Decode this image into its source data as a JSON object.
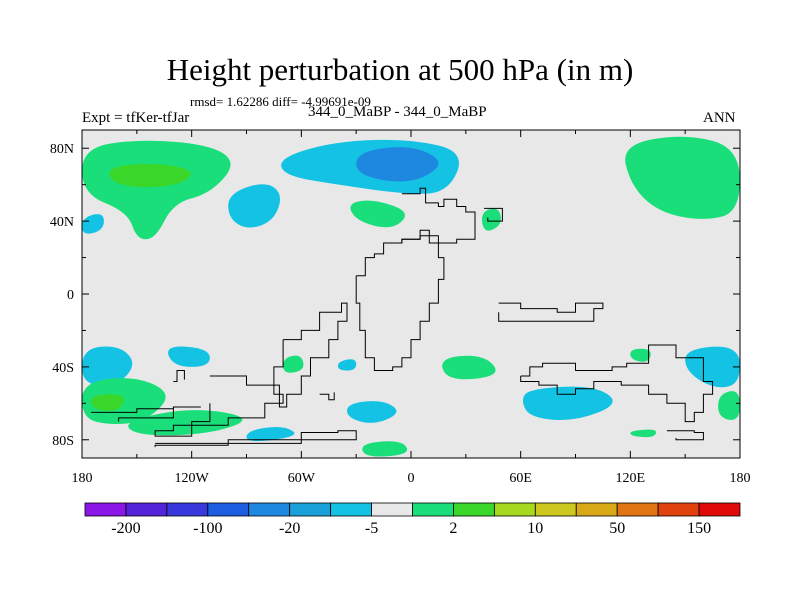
{
  "chart_data": {
    "type": "heatmap",
    "title": "Height perturbation at 500 hPa (in m)",
    "stats_line": "rmsd= 1.62286 diff= -4.99691e-09",
    "left_label": "Expt = tfKer-tfJar",
    "center_label": "344_0_MaBP - 344_0_MaBP",
    "right_label": "ANN",
    "xlim": [
      -180,
      180
    ],
    "ylim": [
      -90,
      90
    ],
    "x_ticks": [
      {
        "value": -180,
        "label": "180"
      },
      {
        "value": -120,
        "label": "120W"
      },
      {
        "value": -60,
        "label": "60W"
      },
      {
        "value": 0,
        "label": "0"
      },
      {
        "value": 60,
        "label": "60E"
      },
      {
        "value": 120,
        "label": "120E"
      },
      {
        "value": 180,
        "label": "180"
      }
    ],
    "y_ticks": [
      {
        "value": 80,
        "label": "80N"
      },
      {
        "value": 40,
        "label": "40N"
      },
      {
        "value": 0,
        "label": "0"
      },
      {
        "value": -40,
        "label": "40S"
      },
      {
        "value": -80,
        "label": "80S"
      }
    ],
    "colorbar": {
      "colors": [
        "#8b17e6",
        "#5323d8",
        "#3838dc",
        "#1d5ee0",
        "#1e88e0",
        "#1aa0d8",
        "#14c3e3",
        "#e8e8e8",
        "#1ade7a",
        "#3ad62a",
        "#a5d81e",
        "#ccc81d",
        "#d8a816",
        "#e07412",
        "#e0420e",
        "#e00a0a"
      ],
      "labels": [
        {
          "boundary": 1,
          "text": "-200"
        },
        {
          "boundary": 3,
          "text": "-100"
        },
        {
          "boundary": 5,
          "text": "-20"
        },
        {
          "boundary": 7,
          "text": "-5"
        },
        {
          "boundary": 9,
          "text": "2"
        },
        {
          "boundary": 11,
          "text": "10"
        },
        {
          "boundary": 13,
          "text": "50"
        },
        {
          "boundary": 15,
          "text": "150"
        }
      ]
    },
    "background_color": "#e8e8e8",
    "anomaly_regions": [
      {
        "level": "positive-weak",
        "color": "#1ade7a",
        "points": [
          [
            -180,
            80
          ],
          [
            -150,
            85
          ],
          [
            -110,
            82
          ],
          [
            -95,
            72
          ],
          [
            -110,
            55
          ],
          [
            -130,
            50
          ],
          [
            -140,
            30
          ],
          [
            -150,
            30
          ],
          [
            -155,
            45
          ],
          [
            -180,
            55
          ]
        ]
      },
      {
        "level": "positive-moderate",
        "color": "#3ad62a",
        "points": [
          [
            -165,
            70
          ],
          [
            -140,
            72
          ],
          [
            -118,
            68
          ],
          [
            -125,
            60
          ],
          [
            -150,
            58
          ],
          [
            -165,
            62
          ]
        ]
      },
      {
        "level": "negative-weak",
        "color": "#14c3e3",
        "points": [
          [
            -180,
            42
          ],
          [
            -168,
            45
          ],
          [
            -168,
            35
          ],
          [
            -180,
            32
          ]
        ]
      },
      {
        "level": "negative-weak",
        "color": "#14c3e3",
        "points": [
          [
            -100,
            55
          ],
          [
            -80,
            62
          ],
          [
            -70,
            55
          ],
          [
            -75,
            40
          ],
          [
            -90,
            35
          ],
          [
            -100,
            42
          ]
        ]
      },
      {
        "level": "negative-weak",
        "color": "#14c3e3",
        "points": [
          [
            -72,
            75
          ],
          [
            -40,
            84
          ],
          [
            0,
            85
          ],
          [
            30,
            78
          ],
          [
            20,
            55
          ],
          [
            -5,
            55
          ],
          [
            -40,
            60
          ],
          [
            -70,
            65
          ]
        ]
      },
      {
        "level": "negative-moderate",
        "color": "#1e88e0",
        "points": [
          [
            -30,
            78
          ],
          [
            0,
            82
          ],
          [
            20,
            72
          ],
          [
            0,
            60
          ],
          [
            -30,
            65
          ]
        ]
      },
      {
        "level": "positive-weak",
        "color": "#1ade7a",
        "points": [
          [
            -35,
            50
          ],
          [
            -20,
            52
          ],
          [
            0,
            45
          ],
          [
            -10,
            35
          ],
          [
            -30,
            40
          ]
        ]
      },
      {
        "level": "positive-weak",
        "color": "#1ade7a",
        "points": [
          [
            38,
            45
          ],
          [
            48,
            48
          ],
          [
            50,
            38
          ],
          [
            40,
            33
          ]
        ]
      },
      {
        "level": "positive-weak",
        "color": "#1ade7a",
        "points": [
          [
            115,
            82
          ],
          [
            150,
            88
          ],
          [
            180,
            80
          ],
          [
            180,
            45
          ],
          [
            160,
            40
          ],
          [
            135,
            45
          ],
          [
            120,
            60
          ]
        ]
      },
      {
        "level": "negative-weak",
        "color": "#14c3e3",
        "points": [
          [
            -180,
            -30
          ],
          [
            -160,
            -28
          ],
          [
            -150,
            -38
          ],
          [
            -160,
            -50
          ],
          [
            -180,
            -50
          ]
        ]
      },
      {
        "level": "positive-weak",
        "color": "#1ade7a",
        "points": [
          [
            -180,
            -48
          ],
          [
            -150,
            -45
          ],
          [
            -130,
            -55
          ],
          [
            -145,
            -70
          ],
          [
            -165,
            -72
          ],
          [
            -180,
            -68
          ]
        ]
      },
      {
        "level": "positive-moderate",
        "color": "#3ad62a",
        "points": [
          [
            -175,
            -55
          ],
          [
            -155,
            -55
          ],
          [
            -160,
            -65
          ],
          [
            -175,
            -63
          ]
        ]
      },
      {
        "level": "negative-weak",
        "color": "#14c3e3",
        "points": [
          [
            -135,
            -28
          ],
          [
            -110,
            -30
          ],
          [
            -110,
            -40
          ],
          [
            -130,
            -40
          ]
        ]
      },
      {
        "level": "positive-weak",
        "color": "#1ade7a",
        "points": [
          [
            -158,
            -70
          ],
          [
            -120,
            -62
          ],
          [
            -85,
            -68
          ],
          [
            -110,
            -77
          ],
          [
            -150,
            -78
          ]
        ]
      },
      {
        "level": "positive-weak",
        "color": "#1ade7a",
        "points": [
          [
            -70,
            -35
          ],
          [
            -60,
            -33
          ],
          [
            -58,
            -42
          ],
          [
            -70,
            -44
          ]
        ]
      },
      {
        "level": "negative-weak",
        "color": "#14c3e3",
        "points": [
          [
            -40,
            -37
          ],
          [
            -30,
            -35
          ],
          [
            -30,
            -42
          ],
          [
            -40,
            -42
          ]
        ]
      },
      {
        "level": "negative-weak",
        "color": "#14c3e3",
        "points": [
          [
            -90,
            -75
          ],
          [
            -70,
            -72
          ],
          [
            -60,
            -78
          ],
          0,
          [
            -90,
            -82
          ]
        ]
      },
      {
        "level": "negative-weak",
        "color": "#14c3e3",
        "points": [
          [
            -35,
            -60
          ],
          [
            -15,
            -58
          ],
          [
            -5,
            -65
          ],
          [
            -20,
            -72
          ],
          [
            -35,
            -68
          ]
        ]
      },
      {
        "level": "positive-weak",
        "color": "#1ade7a",
        "points": [
          [
            -28,
            -82
          ],
          [
            -5,
            -80
          ],
          [
            0,
            -88
          ],
          [
            -25,
            -90
          ]
        ]
      },
      {
        "level": "positive-weak",
        "color": "#1ade7a",
        "points": [
          [
            15,
            -35
          ],
          [
            40,
            -33
          ],
          [
            50,
            -45
          ],
          [
            20,
            -48
          ]
        ]
      },
      {
        "level": "negative-weak",
        "color": "#14c3e3",
        "points": [
          [
            65,
            -52
          ],
          [
            100,
            -50
          ],
          [
            115,
            -60
          ],
          [
            90,
            -70
          ],
          [
            65,
            -68
          ],
          [
            60,
            -58
          ]
        ]
      },
      {
        "level": "negative-weak",
        "color": "#14c3e3",
        "points": [
          [
            150,
            -30
          ],
          [
            180,
            -28
          ],
          [
            180,
            -50
          ],
          [
            165,
            -52
          ],
          [
            150,
            -42
          ]
        ]
      },
      {
        "level": "positive-weak",
        "color": "#1ade7a",
        "points": [
          [
            168,
            -55
          ],
          [
            180,
            -52
          ],
          [
            180,
            -70
          ],
          [
            168,
            -68
          ]
        ]
      },
      {
        "level": "positive-weak",
        "color": "#1ade7a",
        "points": [
          [
            120,
            -30
          ],
          [
            132,
            -30
          ],
          [
            130,
            -38
          ],
          [
            120,
            -36
          ]
        ]
      },
      {
        "level": "positive-weak",
        "color": "#1ade7a",
        "points": [
          [
            120,
            -75
          ],
          [
            135,
            -74
          ],
          [
            133,
            -79
          ],
          [
            120,
            -78
          ]
        ]
      }
    ],
    "coastlines": [
      [
        [
          -5,
          55
        ],
        [
          5,
          58
        ],
        [
          8,
          50
        ],
        [
          15,
          48
        ],
        [
          18,
          52
        ],
        [
          25,
          48
        ],
        [
          30,
          45
        ],
        [
          35,
          40
        ],
        [
          35,
          30
        ],
        [
          25,
          28
        ],
        [
          15,
          32
        ],
        [
          10,
          35
        ],
        [
          5,
          30
        ],
        [
          -5,
          28
        ]
      ],
      [
        [
          -30,
          10
        ],
        [
          -25,
          20
        ],
        [
          -20,
          22
        ],
        [
          -15,
          28
        ],
        [
          -5,
          30
        ],
        [
          5,
          32
        ],
        [
          10,
          28
        ],
        [
          15,
          20
        ],
        [
          18,
          8
        ],
        [
          15,
          -5
        ],
        [
          10,
          -15
        ],
        [
          5,
          -25
        ],
        [
          0,
          -35
        ],
        [
          -5,
          -40
        ],
        [
          -10,
          -42
        ],
        [
          -20,
          -35
        ],
        [
          -25,
          -20
        ],
        [
          -28,
          -5
        ],
        [
          -30,
          10
        ]
      ],
      [
        [
          -70,
          -25
        ],
        [
          -60,
          -20
        ],
        [
          -50,
          -10
        ],
        [
          -38,
          -5
        ],
        [
          -35,
          -15
        ],
        [
          -40,
          -25
        ],
        [
          -45,
          -35
        ],
        [
          -55,
          -45
        ],
        [
          -60,
          -55
        ],
        [
          -68,
          -62
        ],
        [
          -72,
          -50
        ],
        [
          -75,
          -40
        ],
        [
          -70,
          -25
        ]
      ],
      [
        [
          48,
          -5
        ],
        [
          60,
          -8
        ],
        [
          80,
          -10
        ],
        [
          90,
          -5
        ],
        [
          105,
          -8
        ],
        [
          100,
          -15
        ],
        [
          80,
          -15
        ],
        [
          60,
          -15
        ],
        [
          48,
          -10
        ]
      ],
      [
        [
          60,
          -45
        ],
        [
          65,
          -40
        ],
        [
          72,
          -38
        ],
        [
          90,
          -42
        ],
        [
          110,
          -40
        ],
        [
          118,
          -38
        ],
        [
          130,
          -28
        ],
        [
          145,
          -35
        ],
        [
          160,
          -48
        ],
        [
          165,
          -55
        ],
        [
          160,
          -65
        ],
        [
          155,
          -70
        ],
        [
          150,
          -60
        ],
        [
          140,
          -55
        ],
        [
          130,
          -50
        ],
        [
          115,
          -48
        ],
        [
          100,
          -52
        ],
        [
          90,
          -55
        ],
        [
          80,
          -50
        ],
        [
          70,
          -48
        ],
        [
          60,
          -45
        ]
      ],
      [
        [
          -110,
          -45
        ],
        [
          -90,
          -50
        ],
        [
          -75,
          -55
        ],
        [
          -70,
          -60
        ],
        [
          -80,
          -68
        ],
        [
          -100,
          -72
        ],
        [
          -130,
          -75
        ],
        [
          -140,
          -78
        ],
        [
          -120,
          -70
        ],
        [
          -110,
          -60
        ]
      ],
      [
        [
          -140,
          -82
        ],
        [
          -100,
          -80
        ],
        [
          -60,
          -76
        ],
        [
          -40,
          -75
        ],
        [
          -30,
          -80
        ],
        [
          -60,
          -82
        ],
        [
          -100,
          -83
        ],
        [
          -140,
          -84
        ]
      ],
      [
        [
          -175,
          -65
        ],
        [
          -150,
          -63
        ],
        [
          -130,
          -62
        ],
        [
          -115,
          -62
        ],
        [
          -130,
          -68
        ],
        [
          -160,
          -70
        ]
      ],
      [
        [
          40,
          47
        ],
        [
          50,
          45
        ],
        [
          50,
          40
        ],
        [
          42,
          42
        ]
      ],
      [
        [
          140,
          -75
        ],
        [
          155,
          -76
        ],
        [
          160,
          -80
        ],
        [
          145,
          -79
        ]
      ],
      [
        [
          -50,
          -55
        ],
        [
          -45,
          -58
        ],
        [
          -42,
          -54
        ]
      ],
      [
        [
          -130,
          -48
        ],
        [
          -128,
          -42
        ],
        [
          -124,
          -47
        ]
      ]
    ]
  }
}
